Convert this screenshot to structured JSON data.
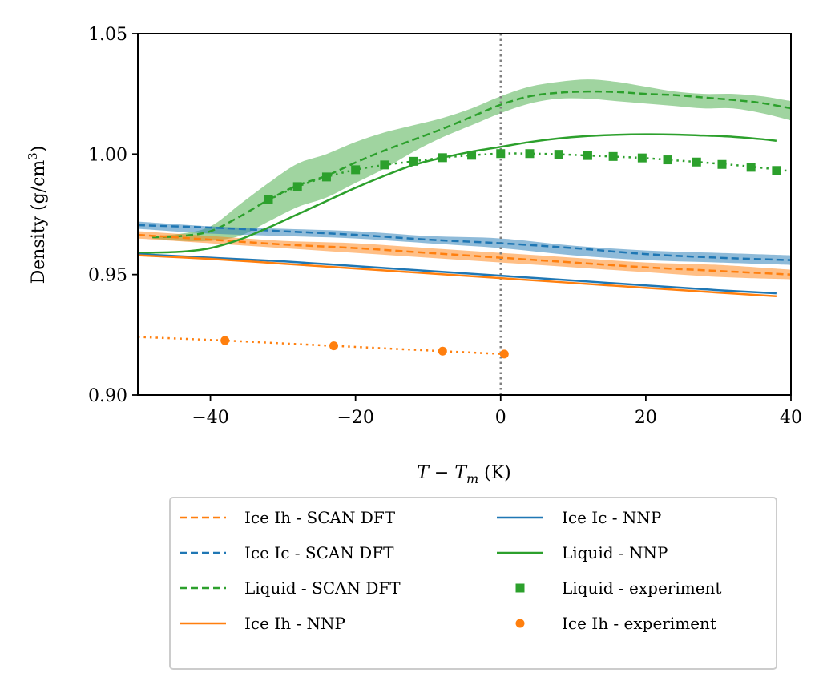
{
  "chart_data": {
    "type": "line",
    "title": "",
    "xlabel_parts": [
      "T",
      " − ",
      "T",
      "m",
      " (K)"
    ],
    "ylabel_parts": [
      "Density (g/cm",
      "3",
      ")"
    ],
    "xlim": [
      -50,
      40
    ],
    "ylim": [
      0.9,
      1.05
    ],
    "xticks": [
      -40,
      -20,
      0,
      20,
      40
    ],
    "xtick_labels": [
      "−40",
      "−20",
      "0",
      "20",
      "40"
    ],
    "yticks": [
      0.9,
      0.95,
      1.0,
      1.05
    ],
    "ytick_labels": [
      "0.90",
      "0.95",
      "1.00",
      "1.05"
    ],
    "vline_x": 0,
    "colors": {
      "orange": "#ff7f0e",
      "blue": "#1f77b4",
      "green": "#2ca02c",
      "vline": "#808080"
    },
    "bands": [
      {
        "color": "green",
        "opacity": 0.45,
        "x": [
          -48,
          -44,
          -40,
          -36,
          -32,
          -28,
          -24,
          -20,
          -16,
          -12,
          -8,
          -4,
          0,
          4,
          8,
          12,
          16,
          20,
          24,
          28,
          32,
          36,
          40
        ],
        "upper": [
          0.966,
          0.967,
          0.97,
          0.979,
          0.988,
          0.996,
          1.0,
          1.005,
          1.009,
          1.012,
          1.015,
          1.019,
          1.024,
          1.028,
          1.03,
          1.031,
          1.03,
          1.028,
          1.026,
          1.025,
          1.025,
          1.024,
          1.022
        ],
        "lower": [
          0.965,
          0.964,
          0.964,
          0.966,
          0.972,
          0.978,
          0.982,
          0.988,
          0.994,
          1.001,
          1.007,
          1.012,
          1.017,
          1.021,
          1.023,
          1.023,
          1.022,
          1.021,
          1.02,
          1.019,
          1.019,
          1.017,
          1.014
        ]
      },
      {
        "color": "blue",
        "opacity": 0.5,
        "x": [
          -50,
          -40,
          -30,
          -20,
          -10,
          0,
          10,
          20,
          30,
          40
        ],
        "upper": [
          0.972,
          0.97,
          0.969,
          0.968,
          0.966,
          0.965,
          0.962,
          0.96,
          0.959,
          0.958
        ],
        "lower": [
          0.969,
          0.967,
          0.966,
          0.965,
          0.963,
          0.961,
          0.958,
          0.956,
          0.955,
          0.954
        ]
      },
      {
        "color": "orange",
        "opacity": 0.5,
        "x": [
          -50,
          -40,
          -30,
          -20,
          -10,
          0,
          10,
          20,
          30,
          40
        ],
        "upper": [
          0.968,
          0.966,
          0.964,
          0.963,
          0.961,
          0.959,
          0.957,
          0.955,
          0.954,
          0.952
        ],
        "lower": [
          0.965,
          0.963,
          0.961,
          0.959,
          0.957,
          0.955,
          0.953,
          0.951,
          0.949,
          0.948
        ]
      }
    ],
    "series": [
      {
        "name": "Liquid - SCAN DFT",
        "color": "green",
        "style": "dashed",
        "x": [
          -48,
          -44,
          -40,
          -36,
          -32,
          -28,
          -24,
          -20,
          -16,
          -12,
          -8,
          -4,
          0,
          4,
          8,
          12,
          16,
          20,
          24,
          28,
          32,
          36,
          40
        ],
        "y": [
          0.9655,
          0.966,
          0.968,
          0.974,
          0.981,
          0.987,
          0.991,
          0.9965,
          1.0015,
          1.006,
          1.0105,
          1.0155,
          1.0205,
          1.024,
          1.0255,
          1.026,
          1.0258,
          1.025,
          1.0245,
          1.0235,
          1.0225,
          1.0212,
          1.019
        ]
      },
      {
        "name": "Ice Ic - SCAN DFT",
        "color": "blue",
        "style": "dashed",
        "x": [
          -50,
          -40,
          -30,
          -20,
          -10,
          0,
          10,
          20,
          30,
          40
        ],
        "y": [
          0.9705,
          0.9695,
          0.968,
          0.9665,
          0.9645,
          0.963,
          0.961,
          0.9585,
          0.957,
          0.956
        ]
      },
      {
        "name": "Ice Ih - SCAN DFT",
        "color": "orange",
        "style": "dashed",
        "x": [
          -50,
          -40,
          -30,
          -20,
          -10,
          0,
          10,
          20,
          30,
          40
        ],
        "y": [
          0.9665,
          0.9645,
          0.9625,
          0.961,
          0.959,
          0.957,
          0.955,
          0.953,
          0.9515,
          0.95
        ]
      },
      {
        "name": "Liquid - NNP",
        "color": "green",
        "style": "solid",
        "x": [
          -50,
          -44,
          -40,
          -36,
          -32,
          -28,
          -24,
          -20,
          -16,
          -12,
          -8,
          -4,
          0,
          4,
          8,
          12,
          16,
          20,
          24,
          28,
          32,
          36,
          38
        ],
        "y": [
          0.959,
          0.9595,
          0.961,
          0.9645,
          0.9695,
          0.975,
          0.9805,
          0.986,
          0.991,
          0.9955,
          0.9985,
          1.001,
          1.003,
          1.005,
          1.0065,
          1.0075,
          1.008,
          1.0082,
          1.0081,
          1.0077,
          1.0072,
          1.0062,
          1.0055
        ]
      },
      {
        "name": "Ice Ic - NNP",
        "color": "blue",
        "style": "solid",
        "x": [
          -50,
          -40,
          -30,
          -20,
          -10,
          0,
          10,
          20,
          30,
          38
        ],
        "y": [
          0.9585,
          0.957,
          0.9555,
          0.9535,
          0.9515,
          0.9495,
          0.9475,
          0.9455,
          0.9435,
          0.9422
        ]
      },
      {
        "name": "Ice Ih - NNP",
        "color": "orange",
        "style": "solid",
        "x": [
          -50,
          -40,
          -30,
          -20,
          -10,
          0,
          10,
          20,
          30,
          38
        ],
        "y": [
          0.958,
          0.9565,
          0.9545,
          0.9525,
          0.9505,
          0.9485,
          0.9465,
          0.9445,
          0.9425,
          0.941
        ]
      },
      {
        "name": "Liquid - experiment",
        "color": "green",
        "style": "dotted",
        "marker": "square",
        "x": [
          -32,
          -28,
          -24,
          -20,
          -16,
          -12,
          -8,
          -4,
          0,
          4,
          8,
          12,
          16,
          20,
          24,
          28,
          32,
          36,
          40
        ],
        "y": [
          0.981,
          0.9865,
          0.9905,
          0.9935,
          0.9955,
          0.997,
          0.9985,
          0.9995,
          1.0002,
          1.0002,
          0.9999,
          0.9994,
          0.9989,
          0.9983,
          0.9974,
          0.9965,
          0.9955,
          0.9943,
          0.9929
        ],
        "marker_x": [
          -32,
          -28,
          -24,
          -20,
          -16,
          -12,
          -8,
          -4,
          0,
          4,
          8,
          12,
          15.5,
          19.5,
          23,
          27,
          30.5,
          34.5,
          38
        ],
        "marker_y": [
          0.981,
          0.9865,
          0.9905,
          0.9935,
          0.9955,
          0.997,
          0.9985,
          0.9995,
          1.0002,
          1.0002,
          0.9999,
          0.9994,
          0.999,
          0.9984,
          0.9976,
          0.9967,
          0.9957,
          0.9945,
          0.9932
        ]
      },
      {
        "name": "Ice Ih - experiment",
        "color": "orange",
        "style": "dotted",
        "marker": "circle",
        "x": [
          -50,
          -38,
          -23,
          -8,
          0.5
        ],
        "y": [
          0.9241,
          0.9226,
          0.9204,
          0.9182,
          0.917
        ],
        "marker_x": [
          -38,
          -23,
          -8,
          0.5
        ],
        "marker_y": [
          0.9226,
          0.9204,
          0.9182,
          0.917
        ]
      }
    ],
    "legend": {
      "placement": "below-center",
      "entries": [
        [
          "Ice Ih - SCAN DFT",
          "Ice Ic - NNP"
        ],
        [
          "Ice Ic - SCAN DFT",
          "Liquid - NNP"
        ],
        [
          "Liquid - SCAN DFT",
          "Liquid - experiment"
        ],
        [
          "Ice Ih - NNP",
          "Ice Ih - experiment"
        ]
      ]
    }
  }
}
